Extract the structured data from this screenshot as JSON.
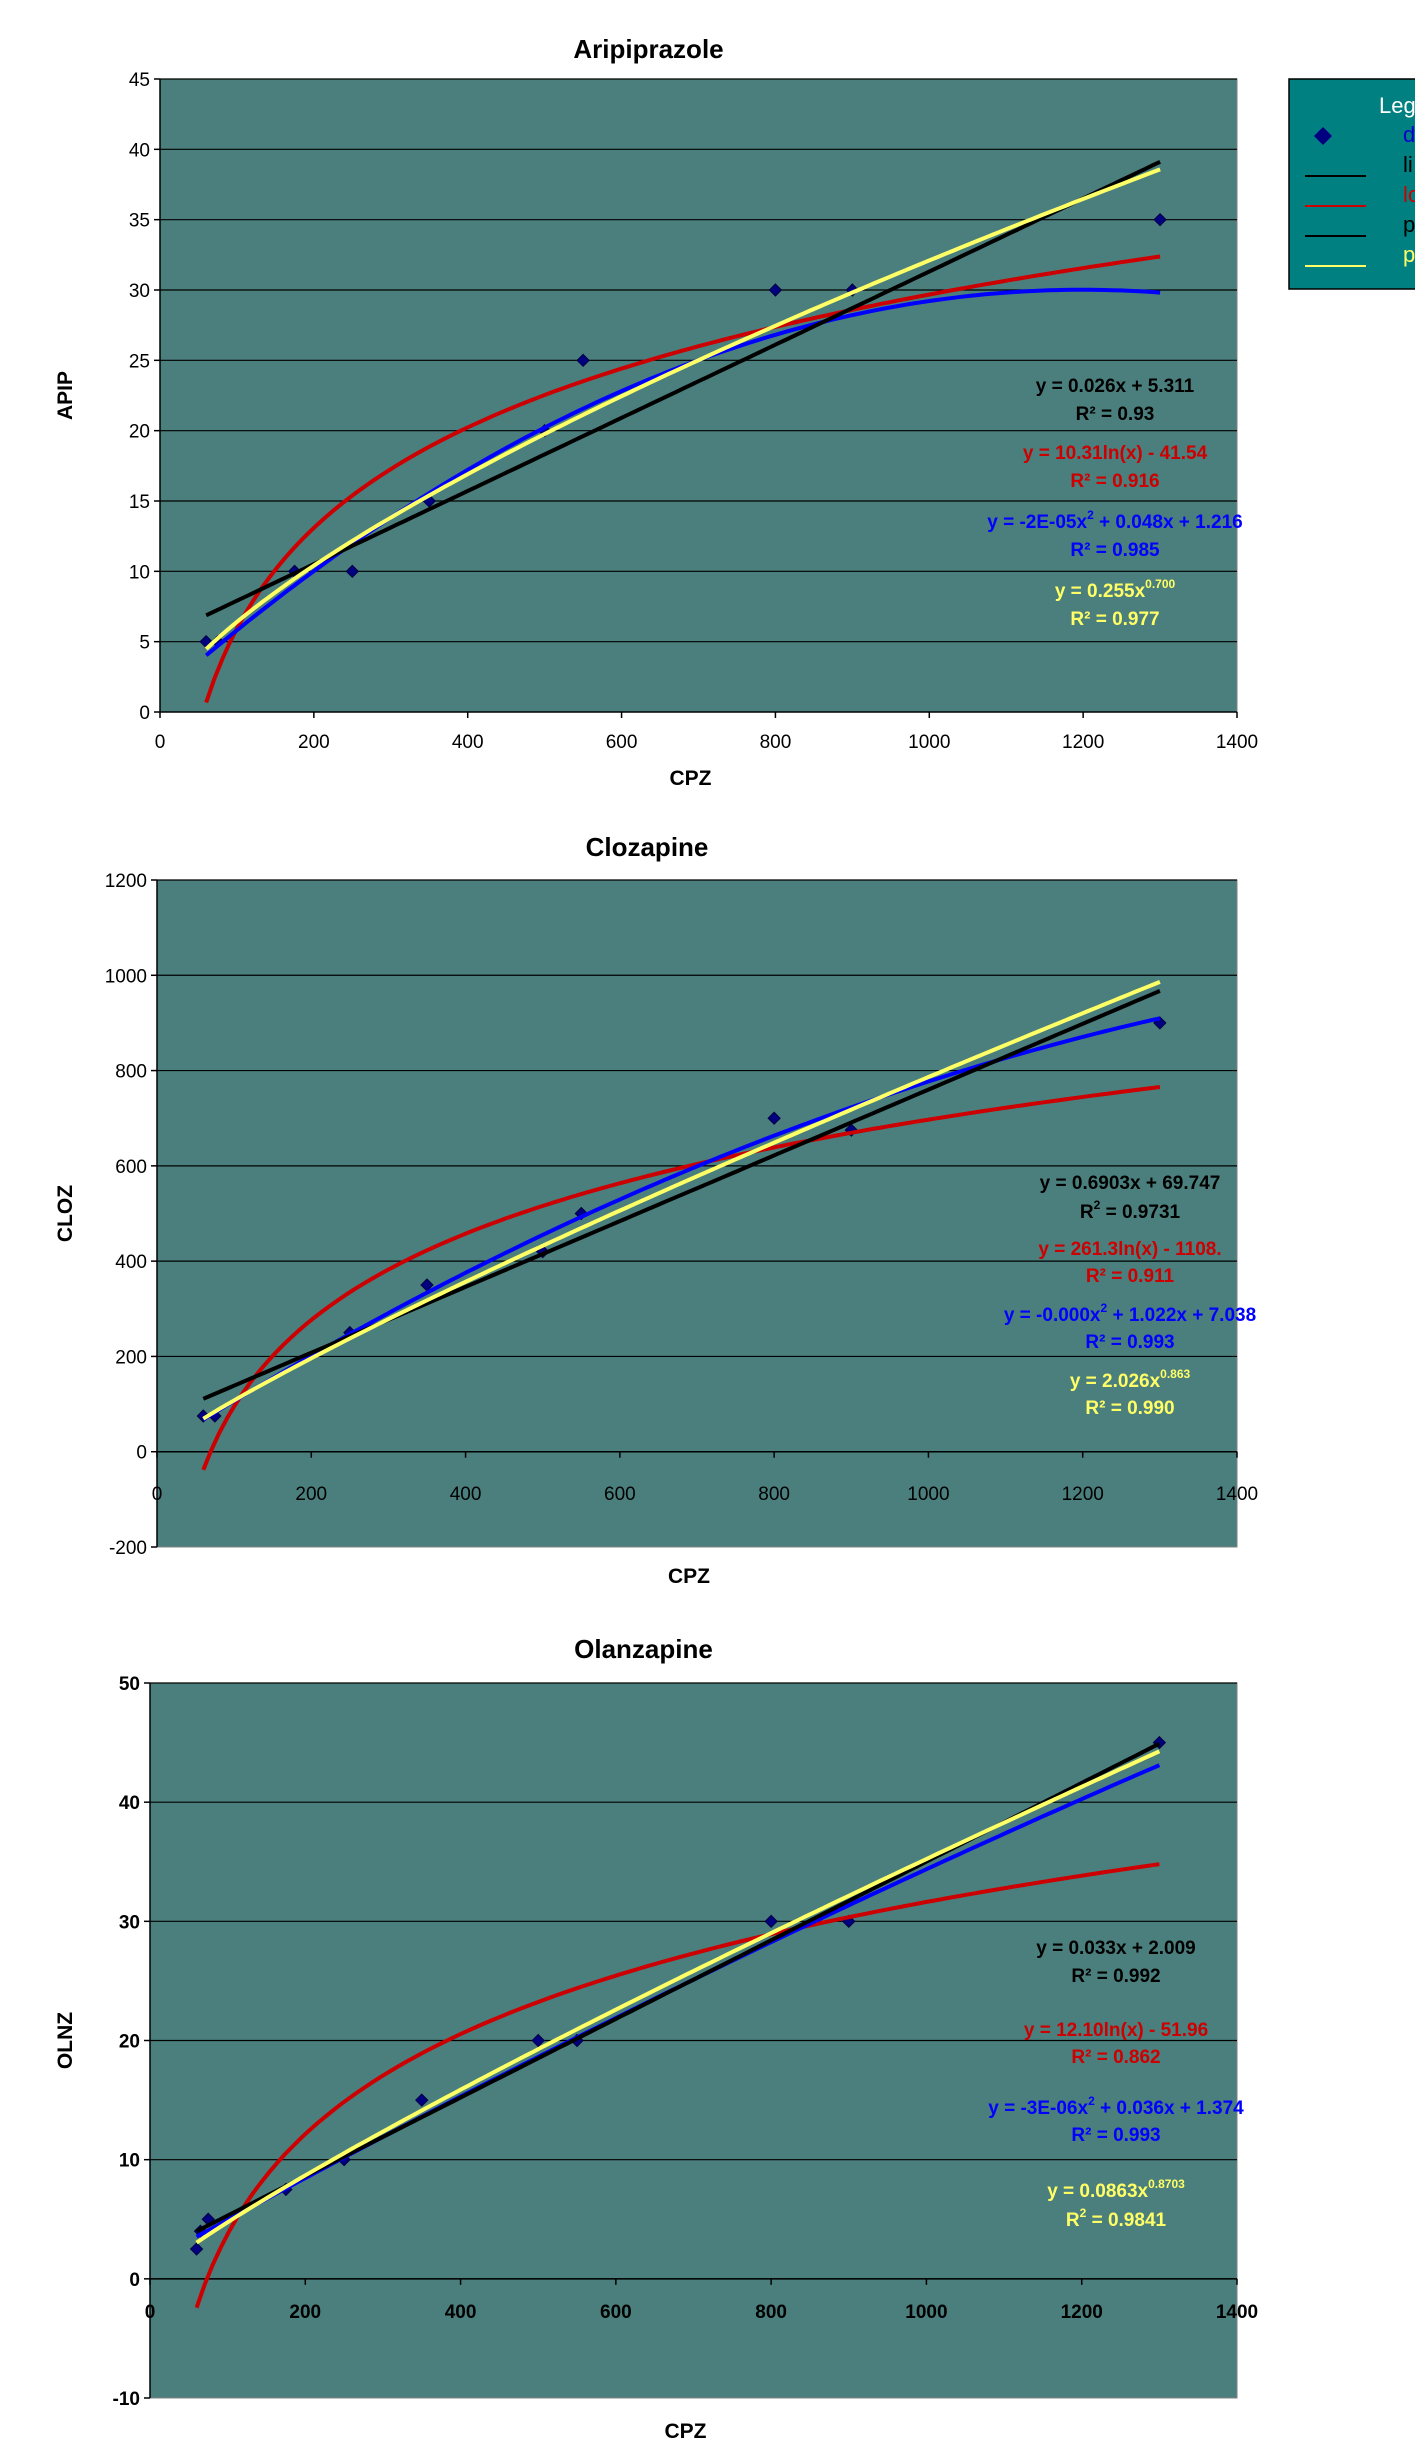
{
  "legend": {
    "title": "Leg",
    "items": [
      {
        "label": "d",
        "symbol": "marker",
        "color": "#000080"
      },
      {
        "label": "li",
        "symbol": "line",
        "color": "#000000"
      },
      {
        "label": "lo",
        "symbol": "line",
        "color": "#cc0000"
      },
      {
        "label": "p",
        "symbol": "line",
        "color": "#000000"
      },
      {
        "label": "p",
        "symbol": "line",
        "color": "#ffff66"
      }
    ],
    "bg_color": "#008080"
  },
  "colors": {
    "plot_bg": "#4a7f7d",
    "data_marker": "#000080",
    "linear": "#000000",
    "log": "#cc0000",
    "poly": "#0000ff",
    "power": "#ffff66"
  },
  "chart_data": [
    {
      "type": "scatter",
      "title": "Aripiprazole",
      "xlabel": "CPZ",
      "ylabel": "APIP",
      "xlim": [
        0,
        1400
      ],
      "ylim": [
        0,
        45
      ],
      "xticks": [
        0,
        200,
        400,
        600,
        800,
        1000,
        1200,
        1400
      ],
      "yticks": [
        0,
        5,
        10,
        15,
        20,
        25,
        30,
        35,
        40,
        45
      ],
      "grid": "horizontal",
      "points": [
        [
          60,
          5
        ],
        [
          75,
          5
        ],
        [
          175,
          10
        ],
        [
          250,
          10
        ],
        [
          350,
          15
        ],
        [
          500,
          20
        ],
        [
          550,
          25
        ],
        [
          800,
          30
        ],
        [
          900,
          30
        ],
        [
          1300,
          35
        ]
      ],
      "trendlines": [
        {
          "kind": "log",
          "a": 10.31,
          "b": -41.54,
          "color": "#cc0000"
        },
        {
          "kind": "poly",
          "a": -2e-05,
          "b": 0.048,
          "c": 1.216,
          "color": "#0000ff"
        },
        {
          "kind": "linear",
          "m": 0.026,
          "c": 5.311,
          "color": "#000000"
        },
        {
          "kind": "power",
          "a": 0.255,
          "b": 0.7,
          "color": "#ffff66"
        }
      ],
      "equations": [
        {
          "text": "y = 0.026x + 5.311",
          "sup": "",
          "text2": "",
          "r2_label": "R² = 0.93",
          "r2_sup": "",
          "color": "#000000"
        },
        {
          "text": "y = 10.31ln(x) - 41.54",
          "sup": "",
          "text2": "",
          "r2_label": "R² = 0.916",
          "r2_sup": "",
          "color": "#cc0000"
        },
        {
          "text": "y = -2E-05x",
          "sup": "2",
          "text2": " + 0.048x + 1.216",
          "r2_label": "R² = 0.985",
          "r2_sup": "",
          "color": "#0000ff"
        },
        {
          "text": "y = 0.255x",
          "sup": "0.700",
          "text2": "",
          "r2_label": "R² = 0.977",
          "r2_sup": "",
          "color": "#ffff66"
        }
      ]
    },
    {
      "type": "scatter",
      "title": "Clozapine",
      "xlabel": "CPZ",
      "ylabel": "CLOZ",
      "xlim": [
        0,
        1400
      ],
      "ylim": [
        -200,
        1200
      ],
      "xticks": [
        0,
        200,
        400,
        600,
        800,
        1000,
        1200,
        1400
      ],
      "yticks": [
        -200,
        0,
        200,
        400,
        600,
        800,
        1000,
        1200
      ],
      "grid": "horizontal",
      "points": [
        [
          60,
          75
        ],
        [
          75,
          75
        ],
        [
          250,
          250
        ],
        [
          350,
          350
        ],
        [
          500,
          420
        ],
        [
          550,
          500
        ],
        [
          800,
          700
        ],
        [
          900,
          675
        ],
        [
          1300,
          900
        ]
      ],
      "trendlines": [
        {
          "kind": "log",
          "a": 261.3,
          "b": -1108,
          "color": "#cc0000"
        },
        {
          "kind": "poly",
          "a": -0.000252,
          "b": 1.022,
          "c": 7.038,
          "color": "#0000ff"
        },
        {
          "kind": "linear",
          "m": 0.6903,
          "c": 69.747,
          "color": "#000000"
        },
        {
          "kind": "power",
          "a": 2.026,
          "b": 0.863,
          "color": "#ffff66"
        }
      ],
      "equations": [
        {
          "text": "y = 0.6903x + 69.747",
          "sup": "",
          "text2": "",
          "r2_label": "R",
          "r2_sup": "2",
          "r2_tail": " = 0.9731",
          "color": "#000000"
        },
        {
          "text": "y = 261.3ln(x) - 1108.",
          "sup": "",
          "text2": "",
          "r2_label": "R² = 0.911",
          "r2_sup": "",
          "color": "#cc0000"
        },
        {
          "text": "y = -0.000x",
          "sup": "2",
          "text2": " + 1.022x + 7.038",
          "r2_label": "R² = 0.993",
          "r2_sup": "",
          "color": "#0000ff"
        },
        {
          "text": "y = 2.026x",
          "sup": "0.863",
          "text2": "",
          "r2_label": "R² = 0.990",
          "r2_sup": "",
          "color": "#ffff66"
        }
      ]
    },
    {
      "type": "scatter",
      "title": "Olanzapine",
      "xlabel": "CPZ",
      "ylabel": "OLNZ",
      "xlim": [
        0,
        1400
      ],
      "ylim": [
        -10,
        50
      ],
      "xticks": [
        0,
        200,
        400,
        600,
        800,
        1000,
        1200,
        1400
      ],
      "yticks": [
        -10,
        0,
        10,
        20,
        30,
        40,
        50
      ],
      "grid": "horizontal",
      "points": [
        [
          60,
          2.5
        ],
        [
          65,
          4
        ],
        [
          75,
          5
        ],
        [
          175,
          7.5
        ],
        [
          250,
          10
        ],
        [
          350,
          15
        ],
        [
          500,
          20
        ],
        [
          550,
          20
        ],
        [
          800,
          30
        ],
        [
          900,
          30
        ],
        [
          1300,
          45
        ]
      ],
      "trendlines": [
        {
          "kind": "log",
          "a": 12.1,
          "b": -51.96,
          "color": "#cc0000"
        },
        {
          "kind": "poly",
          "a": -3e-06,
          "b": 0.036,
          "c": 1.374,
          "color": "#0000ff"
        },
        {
          "kind": "linear",
          "m": 0.033,
          "c": 2.009,
          "color": "#000000"
        },
        {
          "kind": "power",
          "a": 0.0863,
          "b": 0.8703,
          "color": "#ffff66"
        }
      ],
      "equations": [
        {
          "text": "y = 0.033x + 2.009",
          "sup": "",
          "text2": "",
          "r2_label": "R² = 0.992",
          "r2_sup": "",
          "color": "#000000"
        },
        {
          "text": "y = 12.10ln(x) - 51.96",
          "sup": "",
          "text2": "",
          "r2_label": "R² = 0.862",
          "r2_sup": "",
          "color": "#cc0000"
        },
        {
          "text": "y = -3E-06x",
          "sup": "2",
          "text2": " + 0.036x + 1.374",
          "r2_label": "R² = 0.993",
          "r2_sup": "",
          "color": "#0000ff"
        },
        {
          "text": "y = 0.0863x",
          "sup": "0.8703",
          "text2": "",
          "r2_label": "R",
          "r2_sup": "2",
          "r2_tail": " = 0.9841",
          "color": "#ffff66"
        }
      ]
    }
  ]
}
